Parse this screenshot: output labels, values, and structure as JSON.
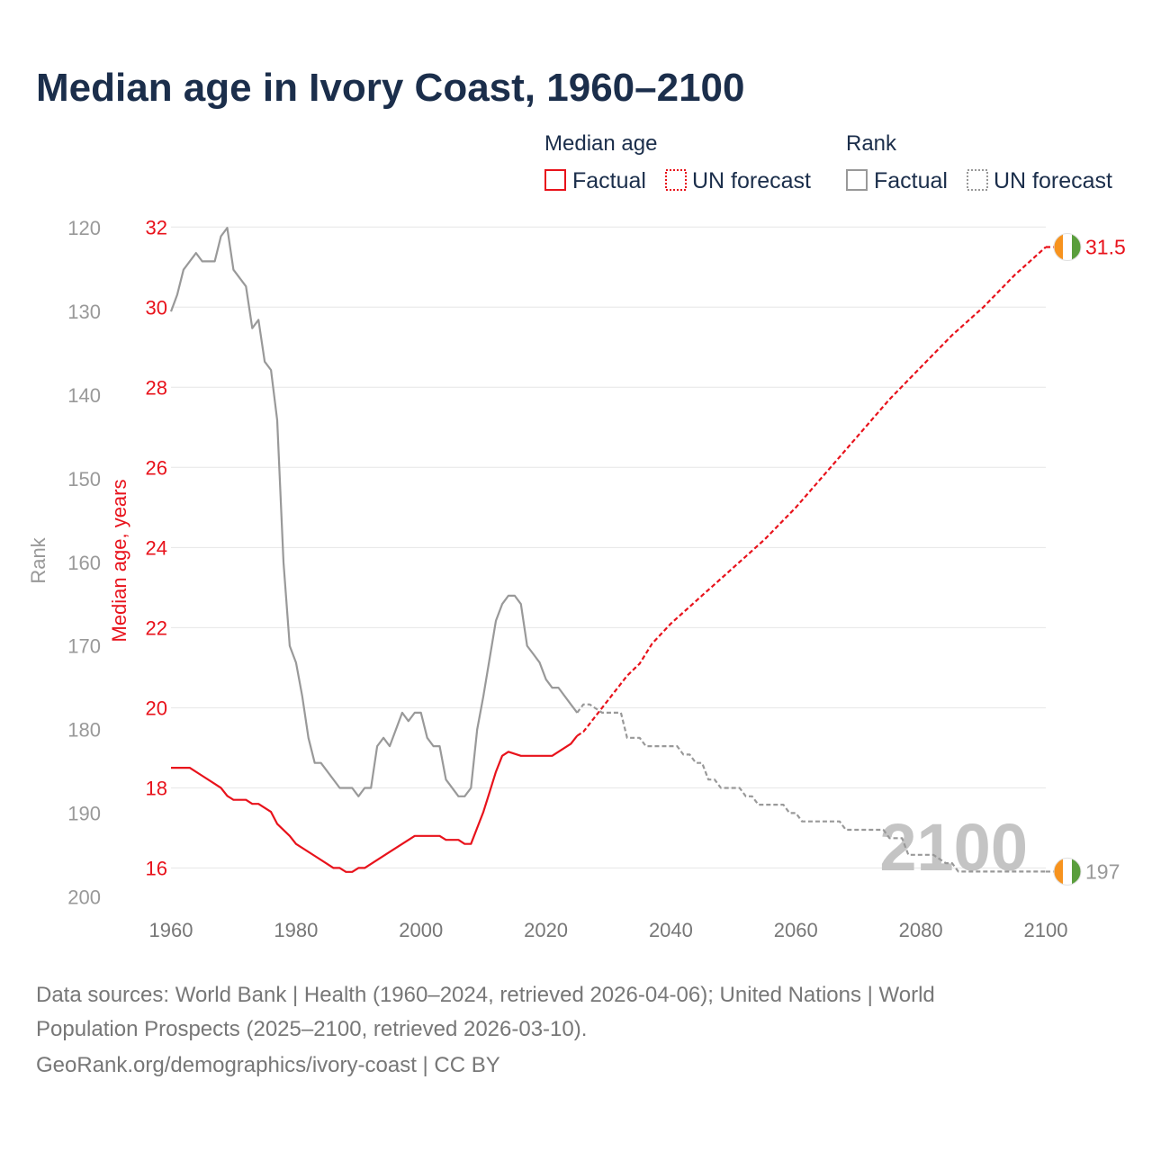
{
  "title": "Median age in Ivory Coast, 1960–2100",
  "legend": {
    "median_heading": "Median age",
    "rank_heading": "Rank",
    "factual": "Factual",
    "forecast": "UN forecast"
  },
  "colors": {
    "age": "#e8121b",
    "rank": "#999999",
    "title": "#1b2e4b",
    "flag_orange": "#f7931e",
    "flag_green": "#5a9e3c"
  },
  "chart_data": {
    "type": "line",
    "x": {
      "min": 1960,
      "max": 2100,
      "ticks": [
        "1960",
        "1980",
        "2000",
        "2020",
        "2040",
        "2060",
        "2080",
        "2100"
      ]
    },
    "y_age": {
      "label": "Median age, years",
      "min": 15.2,
      "max": 32.5,
      "ticks": [
        "16",
        "18",
        "20",
        "22",
        "24",
        "26",
        "28",
        "30",
        "32"
      ]
    },
    "y_rank": {
      "label": "Rank",
      "min": 117.5,
      "max": 200.4,
      "inverted": true,
      "ticks": [
        "120",
        "130",
        "140",
        "150",
        "160",
        "170",
        "180",
        "190",
        "200"
      ]
    },
    "series": [
      {
        "name": "Median age — Factual",
        "style": "solid",
        "points": [
          [
            1960,
            18.5
          ],
          [
            1963,
            18.5
          ],
          [
            1965,
            18.3
          ],
          [
            1967,
            18.1
          ],
          [
            1968,
            18.0
          ],
          [
            1969,
            17.8
          ],
          [
            1970,
            17.7
          ],
          [
            1972,
            17.7
          ],
          [
            1973,
            17.6
          ],
          [
            1974,
            17.6
          ],
          [
            1976,
            17.4
          ],
          [
            1977,
            17.1
          ],
          [
            1979,
            16.8
          ],
          [
            1980,
            16.6
          ],
          [
            1983,
            16.3
          ],
          [
            1985,
            16.1
          ],
          [
            1986,
            16.0
          ],
          [
            1987,
            16.0
          ],
          [
            1988,
            15.9
          ],
          [
            1989,
            15.9
          ],
          [
            1990,
            16.0
          ],
          [
            1991,
            16.0
          ],
          [
            1995,
            16.4
          ],
          [
            1999,
            16.8
          ],
          [
            2003,
            16.8
          ],
          [
            2004,
            16.7
          ],
          [
            2006,
            16.7
          ],
          [
            2007,
            16.6
          ],
          [
            2008,
            16.6
          ],
          [
            2009,
            17.0
          ],
          [
            2010,
            17.4
          ],
          [
            2011,
            17.9
          ],
          [
            2012,
            18.4
          ],
          [
            2013,
            18.8
          ],
          [
            2014,
            18.9
          ],
          [
            2016,
            18.8
          ],
          [
            2021,
            18.8
          ],
          [
            2022,
            18.9
          ],
          [
            2024,
            19.1
          ],
          [
            2025,
            19.3
          ]
        ]
      },
      {
        "name": "Median age — UN forecast",
        "style": "dashed",
        "points": [
          [
            2025,
            19.3
          ],
          [
            2026,
            19.4
          ],
          [
            2028,
            19.8
          ],
          [
            2030,
            20.2
          ],
          [
            2032,
            20.6
          ],
          [
            2033,
            20.8
          ],
          [
            2035,
            21.1
          ],
          [
            2037,
            21.6
          ],
          [
            2040,
            22.1
          ],
          [
            2045,
            22.8
          ],
          [
            2050,
            23.5
          ],
          [
            2055,
            24.2
          ],
          [
            2060,
            25.0
          ],
          [
            2065,
            25.9
          ],
          [
            2070,
            26.8
          ],
          [
            2075,
            27.7
          ],
          [
            2080,
            28.5
          ],
          [
            2085,
            29.3
          ],
          [
            2090,
            30.0
          ],
          [
            2095,
            30.8
          ],
          [
            2100,
            31.5
          ]
        ]
      },
      {
        "name": "Rank — Factual",
        "style": "solid",
        "points": [
          [
            1960,
            130
          ],
          [
            1961,
            128
          ],
          [
            1962,
            125
          ],
          [
            1964,
            123
          ],
          [
            1965,
            124
          ],
          [
            1967,
            124
          ],
          [
            1968,
            121
          ],
          [
            1969,
            120
          ],
          [
            1970,
            125
          ],
          [
            1972,
            127
          ],
          [
            1973,
            132
          ],
          [
            1974,
            131
          ],
          [
            1975,
            136
          ],
          [
            1976,
            137
          ],
          [
            1977,
            143
          ],
          [
            1978,
            160
          ],
          [
            1979,
            170
          ],
          [
            1980,
            172
          ],
          [
            1981,
            176
          ],
          [
            1982,
            181
          ],
          [
            1983,
            184
          ],
          [
            1984,
            184
          ],
          [
            1987,
            187
          ],
          [
            1989,
            187
          ],
          [
            1990,
            188
          ],
          [
            1991,
            187
          ],
          [
            1992,
            187
          ],
          [
            1993,
            182
          ],
          [
            1994,
            181
          ],
          [
            1995,
            182
          ],
          [
            1997,
            178
          ],
          [
            1998,
            179
          ],
          [
            1999,
            178
          ],
          [
            2000,
            178
          ],
          [
            2001,
            181
          ],
          [
            2002,
            182
          ],
          [
            2003,
            182
          ],
          [
            2004,
            186
          ],
          [
            2006,
            188
          ],
          [
            2007,
            188
          ],
          [
            2008,
            187
          ],
          [
            2009,
            180
          ],
          [
            2010,
            176
          ],
          [
            2012,
            167
          ],
          [
            2013,
            165
          ],
          [
            2014,
            164
          ],
          [
            2015,
            164
          ],
          [
            2016,
            165
          ],
          [
            2017,
            170
          ],
          [
            2018,
            171
          ],
          [
            2019,
            172
          ],
          [
            2020,
            174
          ],
          [
            2021,
            175
          ],
          [
            2022,
            175
          ],
          [
            2024,
            177
          ],
          [
            2025,
            178
          ]
        ]
      },
      {
        "name": "Rank — UN forecast",
        "style": "dashed",
        "points": [
          [
            2025,
            178
          ],
          [
            2026,
            177
          ],
          [
            2027,
            177
          ],
          [
            2029,
            178
          ],
          [
            2032,
            178
          ],
          [
            2033,
            181
          ],
          [
            2035,
            181
          ],
          [
            2036,
            182
          ],
          [
            2041,
            182
          ],
          [
            2042,
            183
          ],
          [
            2043,
            183
          ],
          [
            2044,
            184
          ],
          [
            2045,
            184
          ],
          [
            2046,
            186
          ],
          [
            2047,
            186
          ],
          [
            2048,
            187
          ],
          [
            2051,
            187
          ],
          [
            2052,
            188
          ],
          [
            2053,
            188
          ],
          [
            2054,
            189
          ],
          [
            2058,
            189
          ],
          [
            2059,
            190
          ],
          [
            2060,
            190
          ],
          [
            2061,
            191
          ],
          [
            2067,
            191
          ],
          [
            2068,
            192
          ],
          [
            2074,
            192
          ],
          [
            2075,
            193
          ],
          [
            2077,
            193
          ],
          [
            2078,
            195
          ],
          [
            2082,
            195
          ],
          [
            2084,
            196
          ],
          [
            2085,
            196
          ],
          [
            2086,
            197
          ],
          [
            2100,
            197
          ]
        ]
      }
    ],
    "end_labels": {
      "age": "31.5",
      "rank": "197"
    },
    "current_year": "2100"
  },
  "footer": {
    "line1": "Data sources: World Bank | Health (1960–2024, retrieved 2026-04-06); United Nations | World",
    "line2": "Population Prospects (2025–2100, retrieved 2026-03-10).",
    "line3": "GeoRank.org/demographics/ivory-coast | CC BY"
  }
}
